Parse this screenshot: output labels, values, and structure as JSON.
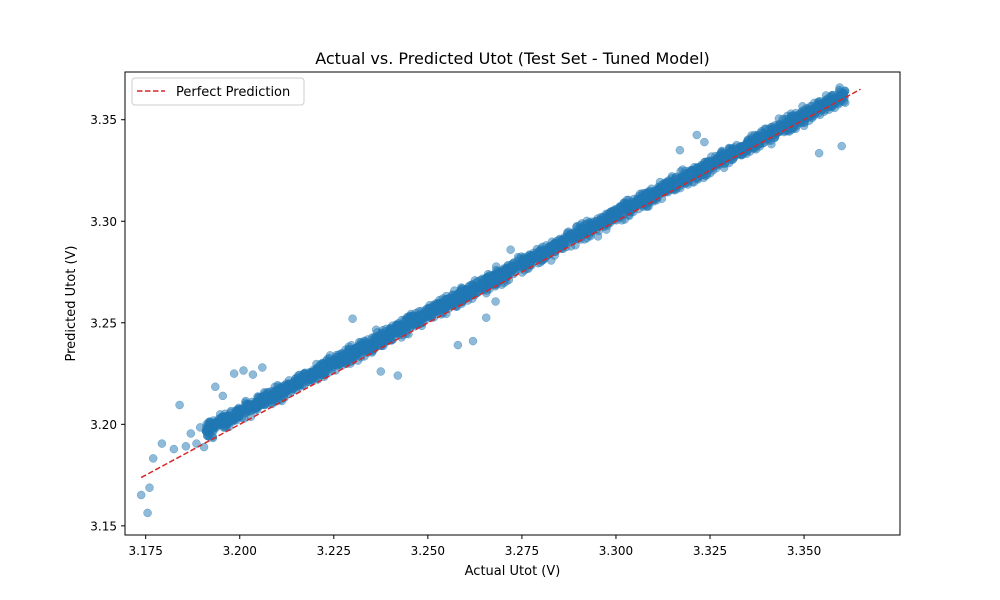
{
  "chart_data": {
    "type": "scatter",
    "title": "Actual vs. Predicted Utot (Test Set - Tuned Model)",
    "xlabel": "Actual Utot (V)",
    "ylabel": "Predicted Utot (V)",
    "xlim": [
      3.1695,
      3.3755
    ],
    "ylim": [
      3.1455,
      3.3735
    ],
    "xticks": [
      3.175,
      3.2,
      3.225,
      3.25,
      3.275,
      3.3,
      3.325,
      3.35
    ],
    "xtick_labels": [
      "3.175",
      "3.200",
      "3.225",
      "3.250",
      "3.275",
      "3.300",
      "3.325",
      "3.350"
    ],
    "yticks": [
      3.15,
      3.2,
      3.25,
      3.3,
      3.35
    ],
    "ytick_labels": [
      "3.15",
      "3.20",
      "3.25",
      "3.30",
      "3.35"
    ],
    "grid": false,
    "legend": {
      "position": "top-left",
      "entries": [
        "Perfect Prediction"
      ]
    },
    "series": [
      {
        "kind": "scatter",
        "color": "#1f77b4",
        "alpha": 0.5,
        "trend": {
          "x_range": [
            3.191,
            3.361
          ],
          "slope": 0.975,
          "intercept_at": [
            3.191,
            3.197
          ],
          "noise_sd": 0.0035
        },
        "points": [
          [
            3.1738,
            3.1652
          ],
          [
            3.1755,
            3.1564
          ],
          [
            3.176,
            3.1688
          ],
          [
            3.177,
            3.1832
          ],
          [
            3.1793,
            3.1905
          ],
          [
            3.1825,
            3.1878
          ],
          [
            3.184,
            3.2095
          ],
          [
            3.1857,
            3.1892
          ],
          [
            3.187,
            3.1955
          ],
          [
            3.1885,
            3.1905
          ],
          [
            3.1895,
            3.1985
          ],
          [
            3.1905,
            3.1888
          ],
          [
            3.1912,
            3.2
          ],
          [
            3.1935,
            3.2185
          ],
          [
            3.1955,
            3.214
          ],
          [
            3.1985,
            3.225
          ],
          [
            3.201,
            3.2265
          ],
          [
            3.2035,
            3.2245
          ],
          [
            3.206,
            3.228
          ],
          [
            3.242,
            3.224
          ],
          [
            3.2375,
            3.226
          ],
          [
            3.23,
            3.252
          ],
          [
            3.244,
            3.2505
          ],
          [
            3.258,
            3.239
          ],
          [
            3.262,
            3.241
          ],
          [
            3.2655,
            3.2525
          ],
          [
            3.268,
            3.2605
          ],
          [
            3.272,
            3.286
          ],
          [
            3.317,
            3.335
          ],
          [
            3.3215,
            3.3425
          ],
          [
            3.3235,
            3.339
          ],
          [
            3.36,
            3.337
          ],
          [
            3.354,
            3.3335
          ],
          [
            3.35,
            3.347
          ]
        ]
      },
      {
        "kind": "line",
        "name": "Perfect Prediction",
        "color": "#d62728",
        "dash": "dashed",
        "x": [
          3.1738,
          3.365
        ],
        "y": [
          3.1738,
          3.365
        ]
      }
    ]
  }
}
